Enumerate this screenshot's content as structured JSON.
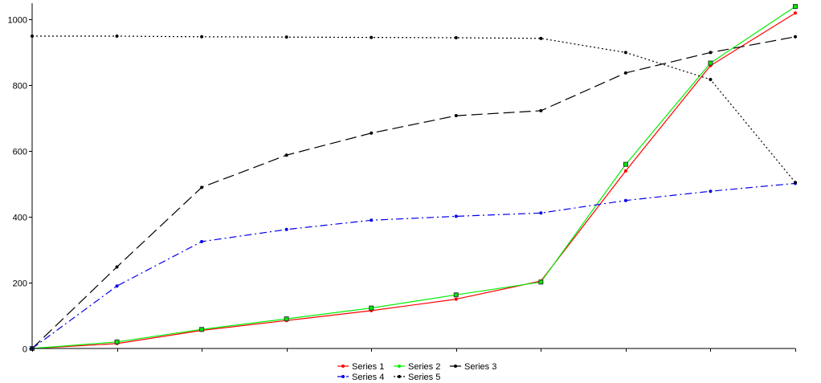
{
  "chart_data": {
    "type": "line",
    "x": [
      0,
      1,
      2,
      3,
      4,
      5,
      6,
      7,
      8,
      9
    ],
    "ylim": [
      0,
      1050
    ],
    "yticks": [
      0,
      200,
      400,
      600,
      800,
      1000
    ],
    "ytick_labels": [
      "0",
      "200",
      "400",
      "600",
      "800",
      "1000"
    ],
    "grid": false,
    "legend_position": "bottom-center",
    "series": [
      {
        "name": "Series 1",
        "color": "#ff0000",
        "dash": "solid",
        "marker": "dot",
        "values": [
          0,
          15,
          55,
          85,
          115,
          150,
          205,
          540,
          860,
          1020
        ]
      },
      {
        "name": "Series 2",
        "color": "#00ee00",
        "dash": "solid",
        "marker": "square",
        "values": [
          0,
          20,
          58,
          90,
          123,
          163,
          202,
          560,
          868,
          1040
        ]
      },
      {
        "name": "Series 3",
        "color": "#000000",
        "dash": "longdash",
        "marker": "dot",
        "values": [
          0,
          248,
          490,
          588,
          655,
          708,
          723,
          838,
          900,
          948
        ]
      },
      {
        "name": "Series 4",
        "color": "#0000ee",
        "dash": "dashdot",
        "marker": "dot",
        "values": [
          0,
          190,
          325,
          362,
          390,
          402,
          412,
          450,
          478,
          502
        ]
      },
      {
        "name": "Series 5",
        "color": "#000000",
        "dash": "dotted",
        "marker": "dot",
        "values": [
          950,
          950,
          948,
          947,
          946,
          945,
          943,
          900,
          818,
          505
        ]
      }
    ]
  }
}
